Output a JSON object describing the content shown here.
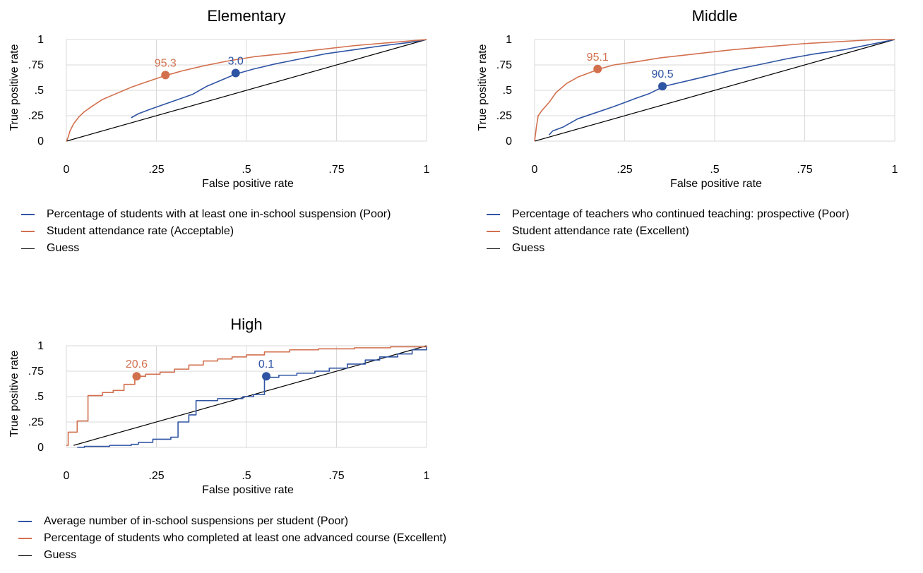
{
  "colors": {
    "blue": "#2f54a3",
    "orange": "#d2704e",
    "guess": "#000000",
    "grid": "#d9d9d9"
  },
  "chart_data": [
    {
      "type": "line",
      "id": "elementary",
      "title": "Elementary",
      "xlabel": "False positive rate",
      "ylabel": "True positive rate",
      "xlim": [
        0,
        1
      ],
      "ylim": [
        0,
        1
      ],
      "xticks": [
        0,
        0.25,
        0.5,
        0.75,
        1
      ],
      "xtick_labels": [
        "0",
        ".25",
        ".5",
        ".75",
        "1"
      ],
      "yticks": [
        0,
        0.25,
        0.5,
        0.75,
        1
      ],
      "ytick_labels": [
        "0",
        ".25",
        ".5",
        ".75",
        "1"
      ],
      "grid": true,
      "legend_position": "bottom",
      "series": [
        {
          "name": "Percentage of students with at least one in-school suspension (Poor)",
          "color": "blue",
          "step": false,
          "x": [
            0.18,
            0.2,
            0.23,
            0.27,
            0.31,
            0.35,
            0.39,
            0.43,
            0.47,
            0.52,
            0.58,
            0.65,
            0.72,
            0.8,
            0.88,
            0.95,
            1
          ],
          "y": [
            0.23,
            0.27,
            0.31,
            0.36,
            0.41,
            0.46,
            0.54,
            0.6,
            0.66,
            0.71,
            0.76,
            0.81,
            0.86,
            0.9,
            0.94,
            0.97,
            1
          ],
          "marker": {
            "x": 0.47,
            "y": 0.67,
            "label": "3.0"
          }
        },
        {
          "name": "Student attendance rate (Acceptable)",
          "color": "orange",
          "step": false,
          "x": [
            0,
            0.005,
            0.01,
            0.02,
            0.035,
            0.05,
            0.07,
            0.1,
            0.14,
            0.18,
            0.22,
            0.27,
            0.32,
            0.38,
            0.45,
            0.52,
            0.6,
            0.7,
            0.8,
            0.9,
            1
          ],
          "y": [
            0,
            0.04,
            0.1,
            0.17,
            0.24,
            0.29,
            0.34,
            0.41,
            0.47,
            0.53,
            0.58,
            0.64,
            0.69,
            0.74,
            0.79,
            0.83,
            0.86,
            0.9,
            0.94,
            0.97,
            1
          ],
          "marker": {
            "x": 0.275,
            "y": 0.65,
            "label": "95.3"
          }
        },
        {
          "name": "Guess",
          "color": "guess",
          "step": false,
          "x": [
            0,
            1
          ],
          "y": [
            0,
            1
          ]
        }
      ]
    },
    {
      "type": "line",
      "id": "middle",
      "title": "Middle",
      "xlabel": "False positive rate",
      "ylabel": "True positive rate",
      "xlim": [
        0,
        1
      ],
      "ylim": [
        0,
        1
      ],
      "xticks": [
        0,
        0.25,
        0.5,
        0.75,
        1
      ],
      "xtick_labels": [
        "0",
        ".25",
        ".5",
        ".75",
        "1"
      ],
      "yticks": [
        0,
        0.25,
        0.5,
        0.75,
        1
      ],
      "ytick_labels": [
        "0",
        ".25",
        ".5",
        ".75",
        "1"
      ],
      "grid": true,
      "legend_position": "bottom",
      "series": [
        {
          "name": "Percentage of teachers who continued teaching: prospective (Poor)",
          "color": "blue",
          "step": false,
          "x": [
            0.04,
            0.05,
            0.08,
            0.12,
            0.17,
            0.22,
            0.28,
            0.32,
            0.36,
            0.42,
            0.48,
            0.55,
            0.62,
            0.7,
            0.78,
            0.86,
            0.93,
            1
          ],
          "y": [
            0.06,
            0.1,
            0.14,
            0.22,
            0.28,
            0.34,
            0.42,
            0.47,
            0.54,
            0.59,
            0.64,
            0.7,
            0.75,
            0.81,
            0.86,
            0.9,
            0.95,
            1
          ],
          "marker": {
            "x": 0.355,
            "y": 0.54,
            "label": "90.5"
          }
        },
        {
          "name": "Student attendance rate (Excellent)",
          "color": "orange",
          "step": false,
          "x": [
            0,
            0.005,
            0.01,
            0.02,
            0.04,
            0.06,
            0.09,
            0.12,
            0.15,
            0.18,
            0.22,
            0.28,
            0.35,
            0.45,
            0.55,
            0.65,
            0.75,
            0.85,
            0.95,
            1
          ],
          "y": [
            0,
            0.14,
            0.25,
            0.3,
            0.38,
            0.48,
            0.57,
            0.63,
            0.67,
            0.71,
            0.75,
            0.78,
            0.82,
            0.86,
            0.9,
            0.93,
            0.96,
            0.98,
            1,
            1
          ],
          "marker": {
            "x": 0.175,
            "y": 0.71,
            "label": "95.1"
          }
        },
        {
          "name": "Guess",
          "color": "guess",
          "step": false,
          "x": [
            0,
            1
          ],
          "y": [
            0,
            1
          ]
        }
      ]
    },
    {
      "type": "line",
      "id": "high",
      "title": "High",
      "xlabel": "False positive rate",
      "ylabel": "True positive rate",
      "xlim": [
        0,
        1
      ],
      "ylim": [
        0,
        1
      ],
      "xticks": [
        0,
        0.25,
        0.5,
        0.75,
        1
      ],
      "xtick_labels": [
        "0",
        ".25",
        ".5",
        ".75",
        "1"
      ],
      "yticks": [
        0,
        0.25,
        0.5,
        0.75,
        1
      ],
      "ytick_labels": [
        "0",
        ".25",
        ".5",
        ".75",
        "1"
      ],
      "grid": true,
      "legend_position": "bottom",
      "series": [
        {
          "name": "Average number of in-school suspensions per student (Poor)",
          "color": "blue",
          "step": true,
          "x": [
            0.03,
            0.05,
            0.12,
            0.18,
            0.2,
            0.24,
            0.29,
            0.31,
            0.34,
            0.36,
            0.42,
            0.49,
            0.52,
            0.55,
            0.59,
            0.64,
            0.69,
            0.73,
            0.78,
            0.83,
            0.87,
            0.92,
            0.96,
            1
          ],
          "y": [
            0,
            0.01,
            0.02,
            0.03,
            0.05,
            0.08,
            0.1,
            0.25,
            0.32,
            0.46,
            0.48,
            0.5,
            0.52,
            0.69,
            0.71,
            0.73,
            0.75,
            0.78,
            0.82,
            0.86,
            0.89,
            0.92,
            0.96,
            1
          ],
          "marker": {
            "x": 0.555,
            "y": 0.7,
            "label": "0.1"
          }
        },
        {
          "name": "Percentage of students who completed at least one advanced course (Excellent)",
          "color": "orange",
          "step": true,
          "x": [
            0,
            0.005,
            0.03,
            0.06,
            0.1,
            0.13,
            0.16,
            0.19,
            0.22,
            0.26,
            0.3,
            0.34,
            0.38,
            0.42,
            0.46,
            0.5,
            0.55,
            0.62,
            0.7,
            0.8,
            0.9,
            1
          ],
          "y": [
            0.02,
            0.15,
            0.26,
            0.51,
            0.54,
            0.56,
            0.62,
            0.7,
            0.72,
            0.74,
            0.77,
            0.81,
            0.85,
            0.87,
            0.89,
            0.91,
            0.94,
            0.96,
            0.97,
            0.98,
            0.99,
            1
          ],
          "marker": {
            "x": 0.195,
            "y": 0.7,
            "label": "20.6"
          }
        },
        {
          "name": "Guess",
          "color": "guess",
          "step": false,
          "x": [
            0.02,
            1
          ],
          "y": [
            0.02,
            1
          ]
        }
      ]
    }
  ]
}
